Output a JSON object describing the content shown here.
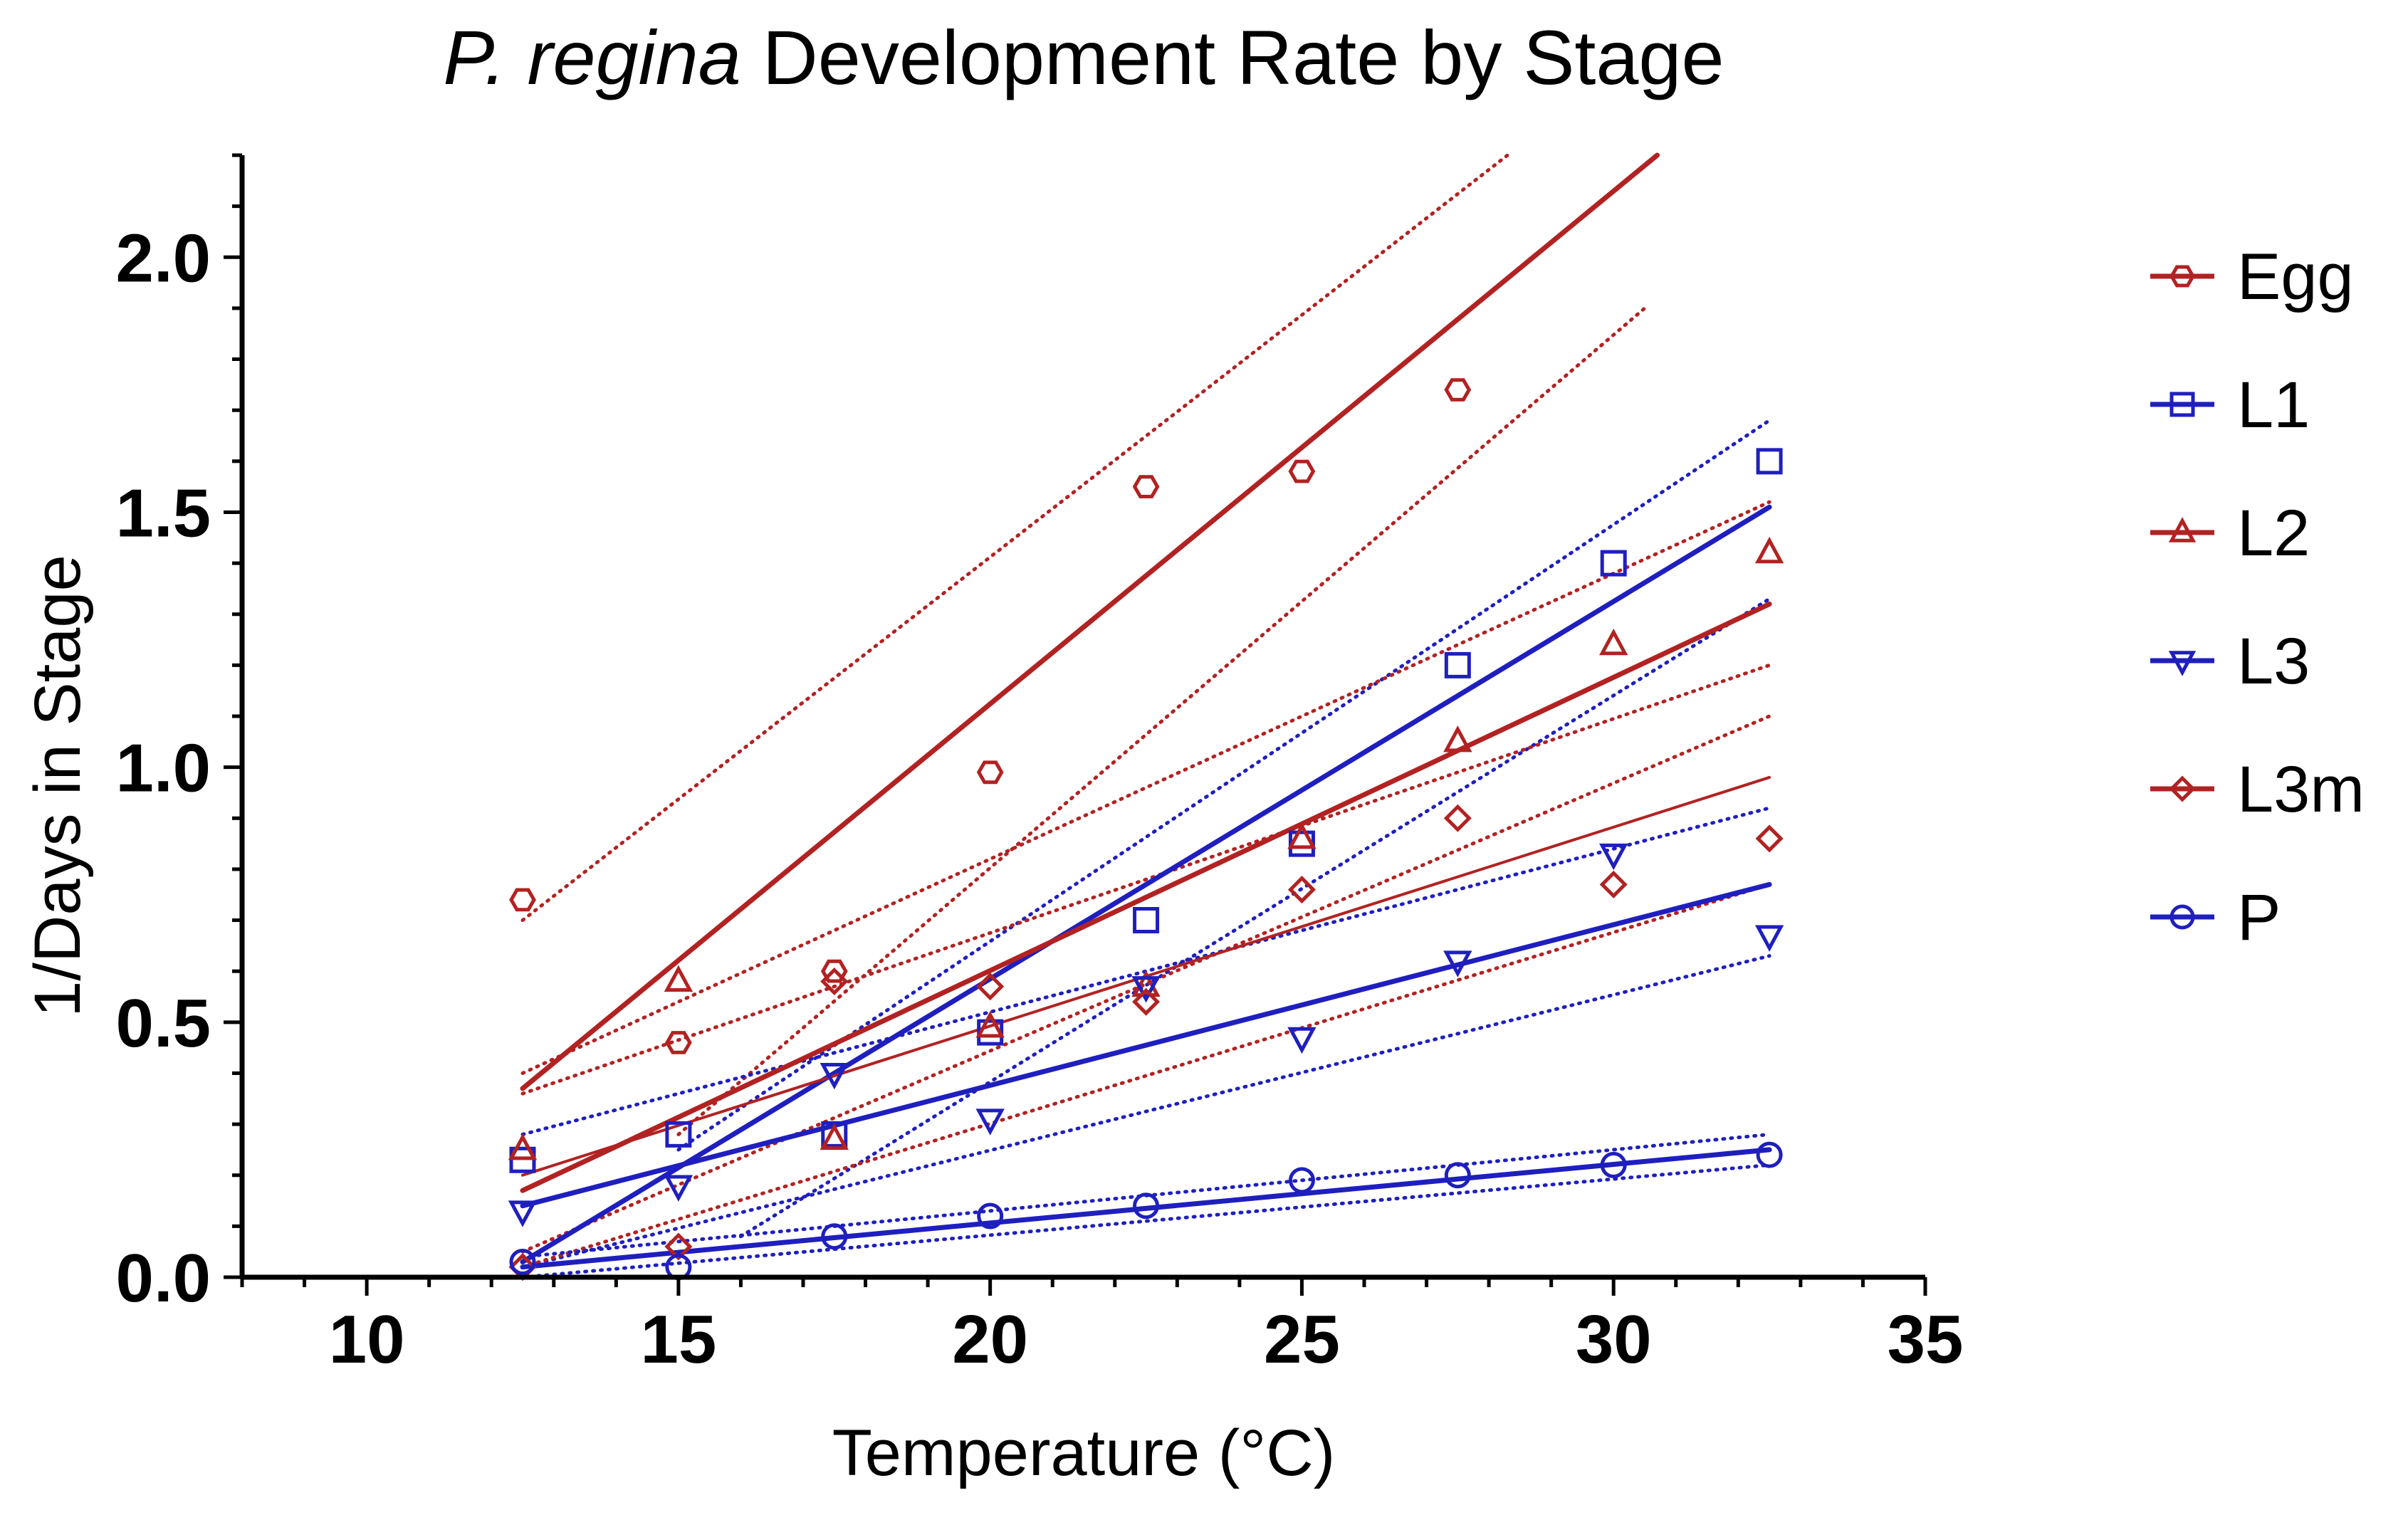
{
  "chart_data": {
    "type": "scatter",
    "title": {
      "italic": "P. regina",
      "rest": " Development Rate by Stage"
    },
    "xlabel": "Temperature (°C)",
    "ylabel": "1/Days in Stage",
    "xlim": [
      8,
      35
    ],
    "ylim": [
      0,
      2.2
    ],
    "x_ticks": [
      10,
      15,
      20,
      25,
      30,
      35
    ],
    "x_tick_labels": [
      "10",
      "15",
      "20",
      "25",
      "30",
      "35"
    ],
    "y_ticks": [
      0,
      0.5,
      1.0,
      1.5,
      2.0
    ],
    "y_tick_labels": [
      "0.0",
      "0.5",
      "1.0",
      "1.5",
      "2.0"
    ],
    "legend_position": "right",
    "series": [
      {
        "name": "Egg",
        "marker": "hexagon",
        "color": "#b22222",
        "x": [
          12.5,
          15,
          17.5,
          20,
          22.5,
          25,
          27.5
        ],
        "y": [
          0.74,
          0.46,
          0.6,
          0.99,
          1.55,
          1.58,
          1.74
        ],
        "fit": {
          "x0": 12.5,
          "y0": 0.37,
          "x1": 30.7,
          "y1": 2.2
        },
        "ci_upper": {
          "x0": 12.5,
          "y0": 0.7,
          "x1": 28.3,
          "y1": 2.2
        },
        "ci_lower": {
          "x0": 15.0,
          "y0": 0.28,
          "x1": 30.5,
          "y1": 1.9
        },
        "line_width": "thick"
      },
      {
        "name": "L1",
        "marker": "square",
        "color": "#1f1fbf",
        "x": [
          12.5,
          15,
          17.5,
          20,
          22.5,
          25,
          27.5,
          30,
          32.5
        ],
        "y": [
          0.23,
          0.28,
          0.28,
          0.48,
          0.7,
          0.85,
          1.2,
          1.4,
          1.6
        ],
        "fit": {
          "x0": 12.5,
          "y0": 0.03,
          "x1": 32.5,
          "y1": 1.51
        },
        "ci_upper": {
          "x0": 15.0,
          "y0": 0.25,
          "x1": 32.5,
          "y1": 1.68
        },
        "ci_lower": {
          "x0": 16.0,
          "y0": 0.08,
          "x1": 32.5,
          "y1": 1.33
        },
        "line_width": "thick"
      },
      {
        "name": "L2",
        "marker": "triangle-up",
        "color": "#b22222",
        "x": [
          12.5,
          15,
          17.5,
          20,
          22.5,
          25,
          27.5,
          30,
          32.5
        ],
        "y": [
          0.25,
          0.58,
          0.27,
          0.49,
          0.57,
          0.86,
          1.05,
          1.24,
          1.42
        ],
        "fit": {
          "x0": 12.5,
          "y0": 0.17,
          "x1": 32.5,
          "y1": 1.32
        },
        "ci_upper": {
          "x0": 12.5,
          "y0": 0.4,
          "x1": 32.5,
          "y1": 1.52
        },
        "ci_lower": {
          "x0": 12.5,
          "y0": 0.05,
          "x1": 32.5,
          "y1": 1.1
        },
        "line_width": "thick"
      },
      {
        "name": "L3",
        "marker": "triangle-down",
        "color": "#1f1fbf",
        "x": [
          12.5,
          15,
          17.5,
          20,
          22.5,
          25,
          27.5,
          30,
          32.5
        ],
        "y": [
          0.13,
          0.18,
          0.4,
          0.31,
          0.57,
          0.47,
          0.62,
          0.83,
          0.67
        ],
        "fit": {
          "x0": 12.5,
          "y0": 0.14,
          "x1": 32.5,
          "y1": 0.77
        },
        "ci_upper": {
          "x0": 12.5,
          "y0": 0.28,
          "x1": 32.5,
          "y1": 0.92
        },
        "ci_lower": {
          "x0": 12.5,
          "y0": 0.02,
          "x1": 32.5,
          "y1": 0.63
        },
        "line_width": "thick"
      },
      {
        "name": "L3m",
        "marker": "diamond",
        "color": "#b22222",
        "x": [
          12.5,
          15,
          17.5,
          20,
          22.5,
          25,
          27.5,
          30,
          32.5
        ],
        "y": [
          0.02,
          0.06,
          0.58,
          0.57,
          0.54,
          0.76,
          0.9,
          0.77,
          0.86
        ],
        "fit": {
          "x0": 12.5,
          "y0": 0.2,
          "x1": 32.5,
          "y1": 0.98
        },
        "ci_upper": {
          "x0": 12.5,
          "y0": 0.36,
          "x1": 32.5,
          "y1": 1.2
        },
        "ci_lower": {
          "x0": 12.5,
          "y0": 0.02,
          "x1": 32.5,
          "y1": 0.77
        },
        "line_width": "thin"
      },
      {
        "name": "P",
        "marker": "circle",
        "color": "#1f1fbf",
        "x": [
          12.5,
          15,
          17.5,
          20,
          22.5,
          25,
          27.5,
          30,
          32.5
        ],
        "y": [
          0.03,
          0.02,
          0.08,
          0.12,
          0.14,
          0.19,
          0.2,
          0.22,
          0.24
        ],
        "fit": {
          "x0": 12.5,
          "y0": 0.02,
          "x1": 32.5,
          "y1": 0.25
        },
        "ci_upper": {
          "x0": 12.5,
          "y0": 0.04,
          "x1": 32.5,
          "y1": 0.28
        },
        "ci_lower": {
          "x0": 12.5,
          "y0": 0.0,
          "x1": 32.5,
          "y1": 0.22
        },
        "line_width": "thick"
      }
    ]
  }
}
